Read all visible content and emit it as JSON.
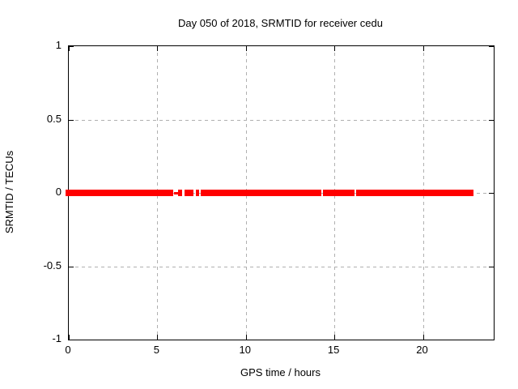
{
  "chart_data": {
    "type": "scatter",
    "title": "Day 050 of 2018, SRMTID for receiver cedu",
    "xlabel": "GPS time / hours",
    "ylabel": "SRMTID / TECUs",
    "xlim": [
      0,
      24
    ],
    "ylim": [
      -1,
      1
    ],
    "x_ticks": [
      0,
      5,
      10,
      15,
      20
    ],
    "y_ticks": [
      -1,
      -0.5,
      0,
      0.5,
      1
    ],
    "grid": "dashed, on both x and y ticks, mirrored inward tick marks on all four borders",
    "legend": "none",
    "series": [
      {
        "name": "SRMTID",
        "color": "#ff0000",
        "y_value": 0,
        "style": "dense red point markers forming a thick horizontal band at y = 0",
        "segments_x_hours": [
          [
            0.0,
            5.9
          ],
          [
            6.18,
            6.42
          ],
          [
            6.55,
            7.05
          ],
          [
            7.18,
            7.37
          ],
          [
            7.45,
            14.28
          ],
          [
            14.37,
            16.15
          ],
          [
            16.25,
            22.87
          ]
        ],
        "sparse_segments_x_hours": [
          [
            5.92,
            6.16
          ]
        ]
      }
    ]
  },
  "colors": {
    "series": "#ff0000",
    "grid": "#b0b0b0",
    "axis": "#000000",
    "background": "#ffffff"
  }
}
